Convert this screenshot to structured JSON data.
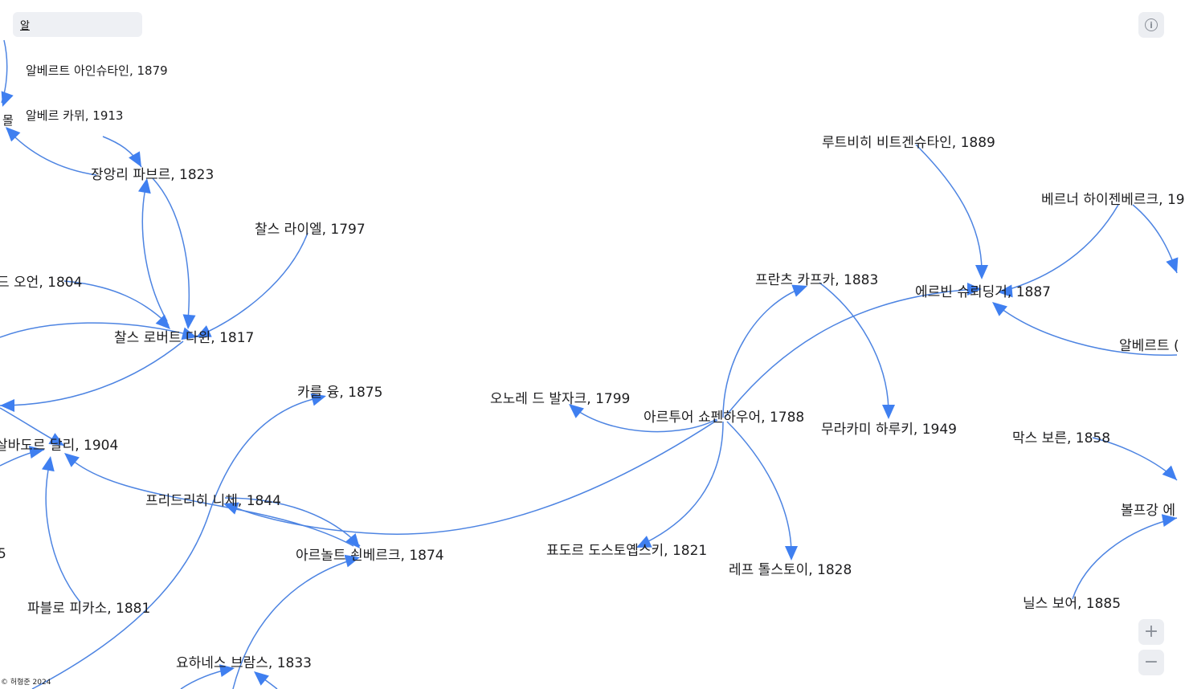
{
  "search": {
    "value": "알"
  },
  "footer": {
    "text": "© 허형준 2024"
  },
  "controls": {
    "info_icon": "info-icon",
    "zoom_in_icon": "plus-icon",
    "zoom_out_icon": "minus-icon",
    "info_glyph": "i",
    "plus_glyph": "+",
    "minus_glyph": "−"
  },
  "colors": {
    "edge": "#4d84e2",
    "arrow": "#3f7ff0"
  },
  "nodes": [
    {
      "label": "알베르트 아인슈타인, 1879"
    },
    {
      "label": "알베르 카뮈, 1913"
    },
    {
      "label": "몰"
    },
    {
      "label": "장앙리 파브르, 1823"
    },
    {
      "label": "찰스 라이엘, 1797"
    },
    {
      "label": "드 오언, 1804"
    },
    {
      "label": "찰스 로버트 다윈, 1817"
    },
    {
      "label": "카를 융, 1875"
    },
    {
      "label": "살바도르 달리, 1904"
    },
    {
      "label": "프리드리히 니체, 1844"
    },
    {
      "label": "아르놀트 쇤베르크, 1874"
    },
    {
      "label": "5"
    },
    {
      "label": "파블로 피카소, 1881"
    },
    {
      "label": "요하네스 브람스, 1833"
    },
    {
      "label": "오노레 드 발자크, 1799"
    },
    {
      "label": "아르투어 쇼펜하우어, 1788"
    },
    {
      "label": "표도르 도스토옙스키, 1821"
    },
    {
      "label": "레프 톨스토이, 1828"
    },
    {
      "label": "프란츠 카프카, 1883"
    },
    {
      "label": "무라카미 하루키, 1949"
    },
    {
      "label": "루트비히 비트겐슈타인, 1889"
    },
    {
      "label": "에르빈 슈뢰딩거, 1887"
    },
    {
      "label": "베르너 하이젠베르크, 19"
    },
    {
      "label": "알베르트 ("
    },
    {
      "label": "막스 보른, 1858"
    },
    {
      "label": "볼프강 에"
    },
    {
      "label": "닐스 보어, 1885"
    }
  ]
}
